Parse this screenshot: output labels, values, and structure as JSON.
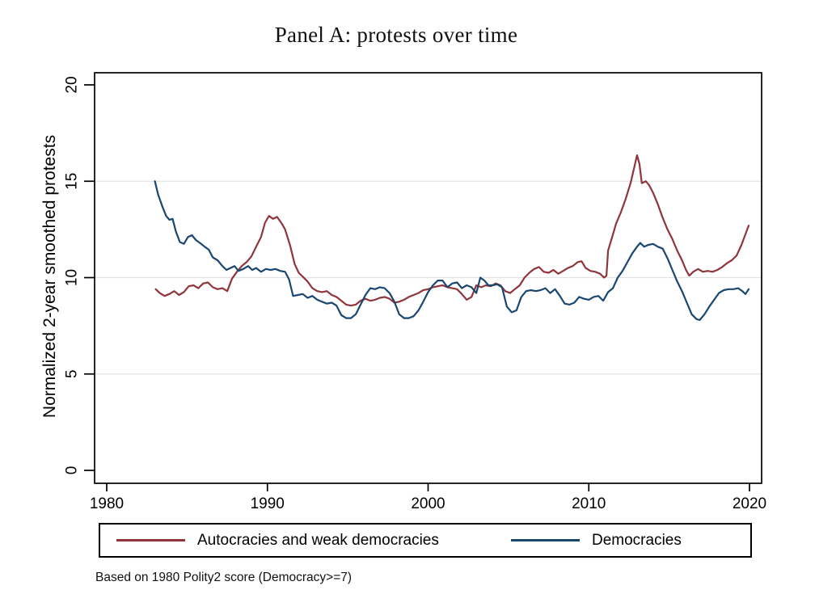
{
  "figure": {
    "title": "Panel A: protests over time",
    "footnote": "Based on 1980 Polity2 score (Democracy>=7)"
  },
  "colors": {
    "autocracies_line": "#90353b",
    "democracies_line": "#1a476f",
    "axis": "#000000",
    "gridline": "#e2e2e2",
    "background": "#ffffff"
  },
  "chart_data": {
    "type": "line",
    "title": "Panel A: protests over time",
    "xlabel": "",
    "ylabel": "Normalized 2-year smoothed protests",
    "xlim": [
      1979.2,
      2020.8
    ],
    "ylim": [
      0,
      20
    ],
    "xticks": [
      1980,
      1990,
      2000,
      2010,
      2020
    ],
    "yticks": [
      0,
      5,
      10,
      15,
      20
    ],
    "grid_y": [
      5,
      10,
      15
    ],
    "grid": "horizontal-light",
    "legend_position": "bottom-box",
    "note": "Based on 1980 Polity2 score (Democracy>=7)",
    "series": [
      {
        "name": "Autocracies and weak democracies",
        "color": "#90353b",
        "points": [
          [
            1983.05,
            9.4
          ],
          [
            1983.3,
            9.2
          ],
          [
            1983.6,
            9.05
          ],
          [
            1983.9,
            9.15
          ],
          [
            1984.2,
            9.3
          ],
          [
            1984.5,
            9.1
          ],
          [
            1984.8,
            9.25
          ],
          [
            1985.1,
            9.55
          ],
          [
            1985.4,
            9.6
          ],
          [
            1985.7,
            9.45
          ],
          [
            1986.0,
            9.7
          ],
          [
            1986.3,
            9.75
          ],
          [
            1986.6,
            9.5
          ],
          [
            1986.9,
            9.4
          ],
          [
            1987.2,
            9.45
          ],
          [
            1987.5,
            9.3
          ],
          [
            1987.8,
            9.95
          ],
          [
            1988.1,
            10.3
          ],
          [
            1988.4,
            10.6
          ],
          [
            1988.7,
            10.8
          ],
          [
            1989.0,
            11.1
          ],
          [
            1989.3,
            11.6
          ],
          [
            1989.6,
            12.1
          ],
          [
            1989.85,
            12.85
          ],
          [
            1990.1,
            13.2
          ],
          [
            1990.35,
            13.05
          ],
          [
            1990.6,
            13.15
          ],
          [
            1990.9,
            12.8
          ],
          [
            1991.1,
            12.5
          ],
          [
            1991.4,
            11.7
          ],
          [
            1991.7,
            10.7
          ],
          [
            1991.95,
            10.25
          ],
          [
            1992.2,
            10.05
          ],
          [
            1992.5,
            9.8
          ],
          [
            1992.8,
            9.45
          ],
          [
            1993.1,
            9.3
          ],
          [
            1993.4,
            9.25
          ],
          [
            1993.7,
            9.3
          ],
          [
            1994.0,
            9.1
          ],
          [
            1994.3,
            9.0
          ],
          [
            1994.6,
            8.8
          ],
          [
            1994.9,
            8.6
          ],
          [
            1995.2,
            8.55
          ],
          [
            1995.5,
            8.6
          ],
          [
            1995.8,
            8.8
          ],
          [
            1996.1,
            8.9
          ],
          [
            1996.4,
            8.8
          ],
          [
            1996.7,
            8.85
          ],
          [
            1997.0,
            8.95
          ],
          [
            1997.3,
            9.0
          ],
          [
            1997.6,
            8.9
          ],
          [
            1997.9,
            8.7
          ],
          [
            1998.2,
            8.75
          ],
          [
            1998.5,
            8.85
          ],
          [
            1998.8,
            9.0
          ],
          [
            1999.1,
            9.1
          ],
          [
            1999.4,
            9.2
          ],
          [
            1999.7,
            9.35
          ],
          [
            2000.0,
            9.4
          ],
          [
            2000.3,
            9.5
          ],
          [
            2000.6,
            9.55
          ],
          [
            2000.9,
            9.6
          ],
          [
            2001.2,
            9.5
          ],
          [
            2001.5,
            9.45
          ],
          [
            2001.8,
            9.4
          ],
          [
            2002.1,
            9.15
          ],
          [
            2002.4,
            8.85
          ],
          [
            2002.7,
            9.0
          ],
          [
            2003.0,
            9.6
          ],
          [
            2003.3,
            9.5
          ],
          [
            2003.6,
            9.6
          ],
          [
            2003.9,
            9.55
          ],
          [
            2004.2,
            9.7
          ],
          [
            2004.5,
            9.6
          ],
          [
            2004.8,
            9.3
          ],
          [
            2005.1,
            9.2
          ],
          [
            2005.4,
            9.4
          ],
          [
            2005.7,
            9.6
          ],
          [
            2006.0,
            10.0
          ],
          [
            2006.3,
            10.25
          ],
          [
            2006.6,
            10.45
          ],
          [
            2006.9,
            10.55
          ],
          [
            2007.2,
            10.3
          ],
          [
            2007.5,
            10.25
          ],
          [
            2007.8,
            10.4
          ],
          [
            2008.1,
            10.2
          ],
          [
            2008.4,
            10.35
          ],
          [
            2008.7,
            10.5
          ],
          [
            2009.0,
            10.6
          ],
          [
            2009.3,
            10.8
          ],
          [
            2009.55,
            10.85
          ],
          [
            2009.8,
            10.5
          ],
          [
            2010.1,
            10.35
          ],
          [
            2010.4,
            10.3
          ],
          [
            2010.7,
            10.2
          ],
          [
            2010.95,
            10.0
          ],
          [
            2011.1,
            10.1
          ],
          [
            2011.2,
            11.4
          ],
          [
            2011.45,
            12.1
          ],
          [
            2011.7,
            12.8
          ],
          [
            2012.0,
            13.4
          ],
          [
            2012.3,
            14.1
          ],
          [
            2012.6,
            14.9
          ],
          [
            2012.85,
            15.8
          ],
          [
            2013.0,
            16.35
          ],
          [
            2013.15,
            15.9
          ],
          [
            2013.3,
            14.9
          ],
          [
            2013.55,
            15.0
          ],
          [
            2013.75,
            14.8
          ],
          [
            2014.0,
            14.4
          ],
          [
            2014.3,
            13.8
          ],
          [
            2014.6,
            13.1
          ],
          [
            2014.9,
            12.5
          ],
          [
            2015.2,
            12.0
          ],
          [
            2015.5,
            11.4
          ],
          [
            2015.8,
            10.9
          ],
          [
            2016.05,
            10.4
          ],
          [
            2016.25,
            10.1
          ],
          [
            2016.5,
            10.3
          ],
          [
            2016.8,
            10.45
          ],
          [
            2017.1,
            10.3
          ],
          [
            2017.4,
            10.35
          ],
          [
            2017.7,
            10.3
          ],
          [
            2018.0,
            10.4
          ],
          [
            2018.3,
            10.55
          ],
          [
            2018.6,
            10.75
          ],
          [
            2018.9,
            10.9
          ],
          [
            2019.2,
            11.15
          ],
          [
            2019.5,
            11.7
          ],
          [
            2019.75,
            12.25
          ],
          [
            2019.95,
            12.7
          ]
        ]
      },
      {
        "name": "Democracies",
        "color": "#1a476f",
        "points": [
          [
            1983.0,
            15.0
          ],
          [
            1983.2,
            14.3
          ],
          [
            1983.5,
            13.6
          ],
          [
            1983.7,
            13.2
          ],
          [
            1983.9,
            13.0
          ],
          [
            1984.1,
            13.05
          ],
          [
            1984.3,
            12.4
          ],
          [
            1984.55,
            11.85
          ],
          [
            1984.8,
            11.75
          ],
          [
            1985.05,
            12.1
          ],
          [
            1985.3,
            12.2
          ],
          [
            1985.55,
            11.95
          ],
          [
            1985.8,
            11.8
          ],
          [
            1986.1,
            11.6
          ],
          [
            1986.35,
            11.45
          ],
          [
            1986.6,
            11.05
          ],
          [
            1986.9,
            10.9
          ],
          [
            1987.2,
            10.6
          ],
          [
            1987.45,
            10.4
          ],
          [
            1987.7,
            10.5
          ],
          [
            1987.95,
            10.6
          ],
          [
            1988.2,
            10.35
          ],
          [
            1988.5,
            10.45
          ],
          [
            1988.8,
            10.6
          ],
          [
            1989.05,
            10.4
          ],
          [
            1989.3,
            10.5
          ],
          [
            1989.6,
            10.3
          ],
          [
            1989.9,
            10.45
          ],
          [
            1990.2,
            10.4
          ],
          [
            1990.5,
            10.45
          ],
          [
            1990.8,
            10.35
          ],
          [
            1991.1,
            10.3
          ],
          [
            1991.35,
            9.9
          ],
          [
            1991.6,
            9.05
          ],
          [
            1991.9,
            9.1
          ],
          [
            1992.2,
            9.15
          ],
          [
            1992.5,
            8.95
          ],
          [
            1992.8,
            9.05
          ],
          [
            1993.1,
            8.85
          ],
          [
            1993.4,
            8.75
          ],
          [
            1993.7,
            8.65
          ],
          [
            1994.0,
            8.7
          ],
          [
            1994.3,
            8.55
          ],
          [
            1994.6,
            8.05
          ],
          [
            1994.9,
            7.9
          ],
          [
            1995.2,
            7.9
          ],
          [
            1995.5,
            8.1
          ],
          [
            1995.8,
            8.6
          ],
          [
            1996.1,
            9.1
          ],
          [
            1996.4,
            9.45
          ],
          [
            1996.7,
            9.4
          ],
          [
            1997.0,
            9.5
          ],
          [
            1997.3,
            9.45
          ],
          [
            1997.6,
            9.2
          ],
          [
            1997.9,
            8.75
          ],
          [
            1998.2,
            8.1
          ],
          [
            1998.5,
            7.9
          ],
          [
            1998.8,
            7.9
          ],
          [
            1999.1,
            8.0
          ],
          [
            1999.4,
            8.3
          ],
          [
            1999.7,
            8.75
          ],
          [
            2000.0,
            9.25
          ],
          [
            2000.3,
            9.6
          ],
          [
            2000.6,
            9.85
          ],
          [
            2000.9,
            9.85
          ],
          [
            2001.2,
            9.5
          ],
          [
            2001.5,
            9.7
          ],
          [
            2001.8,
            9.75
          ],
          [
            2002.1,
            9.45
          ],
          [
            2002.4,
            9.6
          ],
          [
            2002.7,
            9.5
          ],
          [
            2003.0,
            9.2
          ],
          [
            2003.25,
            10.0
          ],
          [
            2003.5,
            9.85
          ],
          [
            2003.75,
            9.6
          ],
          [
            2004.0,
            9.6
          ],
          [
            2004.3,
            9.65
          ],
          [
            2004.6,
            9.5
          ],
          [
            2004.9,
            8.5
          ],
          [
            2005.2,
            8.2
          ],
          [
            2005.5,
            8.3
          ],
          [
            2005.8,
            9.0
          ],
          [
            2006.1,
            9.3
          ],
          [
            2006.4,
            9.35
          ],
          [
            2006.7,
            9.3
          ],
          [
            2007.0,
            9.35
          ],
          [
            2007.3,
            9.45
          ],
          [
            2007.6,
            9.2
          ],
          [
            2007.9,
            9.4
          ],
          [
            2008.2,
            9.05
          ],
          [
            2008.5,
            8.65
          ],
          [
            2008.8,
            8.6
          ],
          [
            2009.1,
            8.7
          ],
          [
            2009.4,
            9.0
          ],
          [
            2009.7,
            8.9
          ],
          [
            2010.0,
            8.85
          ],
          [
            2010.3,
            9.0
          ],
          [
            2010.6,
            9.05
          ],
          [
            2010.9,
            8.8
          ],
          [
            2011.2,
            9.25
          ],
          [
            2011.5,
            9.45
          ],
          [
            2011.8,
            10.0
          ],
          [
            2012.1,
            10.35
          ],
          [
            2012.4,
            10.8
          ],
          [
            2012.7,
            11.25
          ],
          [
            2013.0,
            11.6
          ],
          [
            2013.2,
            11.8
          ],
          [
            2013.45,
            11.6
          ],
          [
            2013.7,
            11.7
          ],
          [
            2014.0,
            11.75
          ],
          [
            2014.3,
            11.6
          ],
          [
            2014.6,
            11.5
          ],
          [
            2014.9,
            11.0
          ],
          [
            2015.2,
            10.4
          ],
          [
            2015.5,
            9.8
          ],
          [
            2015.8,
            9.3
          ],
          [
            2016.1,
            8.7
          ],
          [
            2016.4,
            8.1
          ],
          [
            2016.7,
            7.85
          ],
          [
            2016.9,
            7.8
          ],
          [
            2017.2,
            8.1
          ],
          [
            2017.5,
            8.5
          ],
          [
            2017.8,
            8.85
          ],
          [
            2018.1,
            9.2
          ],
          [
            2018.4,
            9.35
          ],
          [
            2018.7,
            9.4
          ],
          [
            2019.0,
            9.4
          ],
          [
            2019.3,
            9.45
          ],
          [
            2019.55,
            9.3
          ],
          [
            2019.75,
            9.15
          ],
          [
            2019.95,
            9.4
          ]
        ]
      }
    ]
  }
}
